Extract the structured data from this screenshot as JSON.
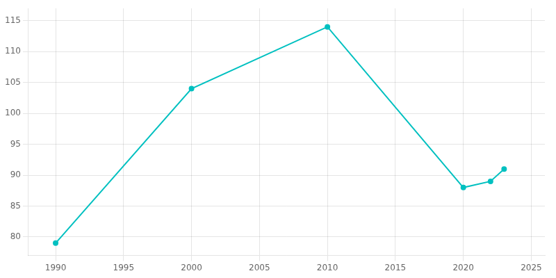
{
  "chart_data": {
    "type": "line",
    "x": [
      1990,
      2000,
      2010,
      2020,
      2022,
      2023
    ],
    "values": [
      79,
      104,
      114,
      88,
      89,
      91
    ],
    "color": "#00c0c0",
    "marker": "circle",
    "xlim": [
      1988,
      2026
    ],
    "ylim": [
      77,
      117
    ],
    "xticks": [
      1990,
      1995,
      2000,
      2005,
      2010,
      2015,
      2020,
      2025
    ],
    "yticks": [
      80,
      85,
      90,
      95,
      100,
      105,
      110,
      115
    ],
    "grid": true
  }
}
